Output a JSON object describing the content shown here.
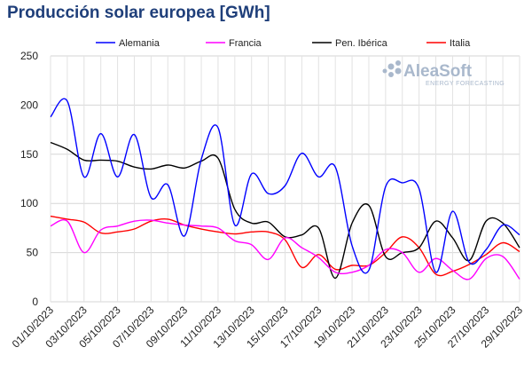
{
  "chart_data": {
    "type": "line",
    "title": "Producción solar europea [GWh]",
    "xlabel": "",
    "ylabel": "",
    "ylim": [
      0,
      250
    ],
    "yticks": [
      0,
      50,
      100,
      150,
      200,
      250
    ],
    "x_tick_labels": [
      "01/10/2023",
      "03/10/2023",
      "05/10/2023",
      "07/10/2023",
      "09/10/2023",
      "11/10/2023",
      "13/10/2023",
      "15/10/2023",
      "17/10/2023",
      "19/10/2023",
      "21/10/2023",
      "23/10/2023",
      "25/10/2023",
      "27/10/2023",
      "29/10/2023"
    ],
    "categories": [
      "01/10/2023",
      "02/10/2023",
      "03/10/2023",
      "04/10/2023",
      "05/10/2023",
      "06/10/2023",
      "07/10/2023",
      "08/10/2023",
      "09/10/2023",
      "10/10/2023",
      "11/10/2023",
      "12/10/2023",
      "13/10/2023",
      "14/10/2023",
      "15/10/2023",
      "16/10/2023",
      "17/10/2023",
      "18/10/2023",
      "19/10/2023",
      "20/10/2023",
      "21/10/2023",
      "22/10/2023",
      "23/10/2023",
      "24/10/2023",
      "25/10/2023",
      "26/10/2023",
      "27/10/2023",
      "28/10/2023",
      "29/10/2023"
    ],
    "grid": true,
    "legend_position": "top",
    "series": [
      {
        "name": "Alemania",
        "color": "#0000ff",
        "values": [
          188,
          204,
          127,
          171,
          127,
          170,
          106,
          119,
          67,
          145,
          177,
          78,
          130,
          110,
          118,
          151,
          127,
          137,
          57,
          32,
          117,
          121,
          115,
          30,
          92,
          40,
          53,
          78,
          68
        ]
      },
      {
        "name": "Francia",
        "color": "#ff00ff",
        "values": [
          77,
          82,
          50,
          73,
          77,
          82,
          83,
          80,
          78,
          77,
          75,
          62,
          58,
          43,
          65,
          55,
          45,
          30,
          30,
          37,
          53,
          50,
          30,
          44,
          32,
          23,
          44,
          46,
          23
        ]
      },
      {
        "name": "Pen. Ibérica",
        "color": "#000000",
        "values": [
          162,
          155,
          144,
          144,
          143,
          137,
          135,
          139,
          136,
          143,
          146,
          94,
          80,
          81,
          66,
          68,
          75,
          24,
          80,
          98,
          46,
          50,
          55,
          82,
          65,
          42,
          82,
          80,
          55
        ]
      },
      {
        "name": "Italia",
        "color": "#ff0000",
        "values": [
          87,
          84,
          81,
          70,
          71,
          74,
          82,
          84,
          78,
          74,
          71,
          69,
          71,
          71,
          63,
          35,
          48,
          33,
          37,
          37,
          50,
          66,
          55,
          28,
          31,
          38,
          48,
          60,
          51
        ]
      }
    ]
  },
  "logo": {
    "main": "AleaSoft",
    "sub": "ENERGY FORECASTING"
  }
}
